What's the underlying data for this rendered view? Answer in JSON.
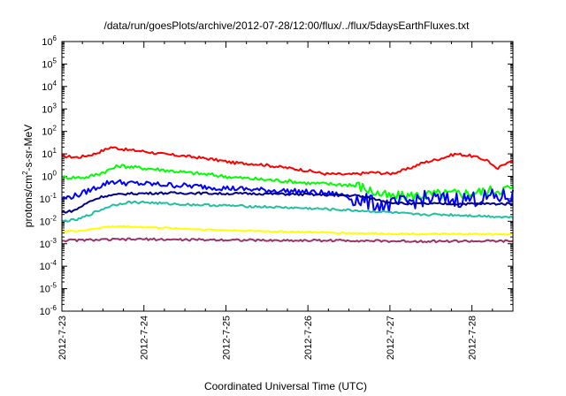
{
  "chart_data": {
    "type": "line",
    "title": "/data/run/goesPlots/archive/2012-07-28/12:00/flux/../flux/5daysEarthFluxes.txt",
    "xlabel": "Coordinated Universal Time (UTC)",
    "ylabel": {
      "prefix": "protons/cm",
      "sup": "2",
      "suffix": "-s-sr-MeV"
    },
    "y_scale": "log",
    "ylim": [
      1e-06,
      1000000.0
    ],
    "y_ticks": [
      {
        "base": "10",
        "exp": "-6"
      },
      {
        "base": "10",
        "exp": "-5"
      },
      {
        "base": "10",
        "exp": "-4"
      },
      {
        "base": "10",
        "exp": "-3"
      },
      {
        "base": "10",
        "exp": "-2"
      },
      {
        "base": "10",
        "exp": "-1"
      },
      {
        "base": "10",
        "exp": "0"
      },
      {
        "base": "10",
        "exp": "1"
      },
      {
        "base": "10",
        "exp": "2"
      },
      {
        "base": "10",
        "exp": "3"
      },
      {
        "base": "10",
        "exp": "4"
      },
      {
        "base": "10",
        "exp": "5"
      },
      {
        "base": "10",
        "exp": "6"
      }
    ],
    "x_ticks": [
      "2012-7-23",
      "2012-7-24",
      "2012-7-25",
      "2012-7-26",
      "2012-7-27",
      "2012-7-28"
    ],
    "x_range_days": [
      0,
      5.5
    ],
    "grid": false,
    "series": [
      {
        "color": "#ff0000",
        "x": [
          0,
          0.2,
          0.4,
          0.6,
          0.8,
          1.0,
          1.2,
          1.5,
          1.8,
          2.1,
          2.4,
          2.7,
          3.0,
          3.2,
          3.5,
          3.8,
          4.0,
          4.2,
          4.4,
          4.6,
          4.8,
          5.0,
          5.2,
          5.3,
          5.45,
          5.5
        ],
        "y": [
          8,
          7,
          10,
          20,
          15,
          13,
          10,
          8,
          6,
          4,
          3.5,
          2.5,
          1.8,
          1.3,
          1.2,
          1.5,
          1.3,
          2,
          4,
          6,
          10,
          8,
          5,
          2,
          5,
          4
        ]
      },
      {
        "color": "#00ff00",
        "x": [
          0,
          0.3,
          0.5,
          0.7,
          0.9,
          1.2,
          1.5,
          1.8,
          2.1,
          2.5,
          2.8,
          3.0,
          3.3,
          3.6,
          3.8,
          4.0,
          4.3,
          4.6,
          5.0,
          5.3,
          5.5
        ],
        "y": [
          0.9,
          0.9,
          1.5,
          3,
          2.5,
          2,
          1.5,
          1.2,
          0.9,
          0.7,
          0.6,
          0.5,
          0.45,
          0.4,
          0.2,
          0.12,
          0.14,
          0.16,
          0.18,
          0.25,
          0.3
        ]
      },
      {
        "color": "#0000ff",
        "x": [
          0,
          0.2,
          0.4,
          0.6,
          0.8,
          1.1,
          1.4,
          1.7,
          2.0,
          2.4,
          2.8,
          3.0,
          3.2,
          3.4,
          3.6,
          3.8,
          4.0,
          4.2,
          4.4,
          4.7,
          5.0,
          5.3,
          5.5
        ],
        "y": [
          0.1,
          0.15,
          0.3,
          0.6,
          0.5,
          0.45,
          0.4,
          0.35,
          0.3,
          0.25,
          0.22,
          0.2,
          0.18,
          0.15,
          0.1,
          0.06,
          0.05,
          0.07,
          0.1,
          0.09,
          0.1,
          0.12,
          0.13
        ]
      },
      {
        "color": "#00008b",
        "x": [
          0,
          0.15,
          0.35,
          0.5,
          0.8,
          1.2,
          1.6,
          2.0,
          2.4,
          2.8,
          3.2,
          3.6,
          3.8,
          4.0,
          4.2,
          4.5,
          5.0,
          5.5
        ],
        "y": [
          0.025,
          0.03,
          0.08,
          0.13,
          0.17,
          0.18,
          0.18,
          0.17,
          0.17,
          0.16,
          0.15,
          0.14,
          0.1,
          0.07,
          0.06,
          0.06,
          0.06,
          0.06
        ]
      },
      {
        "color": "#20c0a0",
        "x": [
          0,
          0.2,
          0.4,
          0.6,
          0.8,
          1.0,
          1.3,
          1.6,
          2.0,
          2.4,
          2.8,
          3.2,
          3.6,
          4.0,
          4.3,
          4.6,
          5.0,
          5.5
        ],
        "y": [
          0.01,
          0.012,
          0.025,
          0.05,
          0.07,
          0.07,
          0.06,
          0.055,
          0.05,
          0.045,
          0.04,
          0.035,
          0.03,
          0.025,
          0.02,
          0.02,
          0.018,
          0.015
        ]
      },
      {
        "color": "#ffff00",
        "x": [
          0,
          0.3,
          0.5,
          0.7,
          1.0,
          1.3,
          1.6,
          2.0,
          2.5,
          3.0,
          3.5,
          4.0,
          4.5,
          5.0,
          5.5
        ],
        "y": [
          0.0035,
          0.004,
          0.0055,
          0.006,
          0.0055,
          0.005,
          0.0045,
          0.004,
          0.0036,
          0.0033,
          0.003,
          0.0028,
          0.0027,
          0.0027,
          0.0026
        ]
      },
      {
        "color": "#993366",
        "x": [
          0,
          0.5,
          1.0,
          1.5,
          2.0,
          2.5,
          3.0,
          3.5,
          4.0,
          4.5,
          5.0,
          5.5
        ],
        "y": [
          0.0014,
          0.0015,
          0.0016,
          0.0015,
          0.0015,
          0.0014,
          0.0014,
          0.0014,
          0.0013,
          0.0013,
          0.0013,
          0.0013
        ]
      }
    ]
  }
}
